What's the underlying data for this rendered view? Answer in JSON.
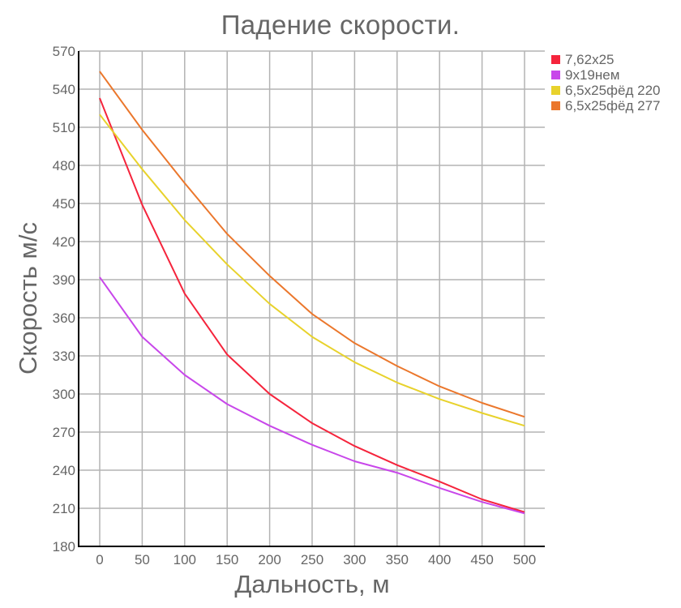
{
  "title": "Падение скорости.",
  "chart_data": {
    "type": "line",
    "title": "Падение скорости.",
    "xlabel": "Дальность, м",
    "ylabel": "Скорость м/с",
    "x": [
      0,
      50,
      100,
      150,
      200,
      250,
      300,
      350,
      400,
      450,
      500
    ],
    "xlim": [
      0,
      500
    ],
    "ylim": [
      180,
      570
    ],
    "yticks": [
      180,
      210,
      240,
      270,
      300,
      330,
      360,
      390,
      420,
      450,
      480,
      510,
      540,
      570
    ],
    "xticks": [
      0,
      50,
      100,
      150,
      200,
      250,
      300,
      350,
      400,
      450,
      500
    ],
    "grid": true,
    "legend_position": "right",
    "series": [
      {
        "name": "7,62x25",
        "color": "#f5243c",
        "values": [
          533,
          449,
          379,
          331,
          300,
          277,
          259,
          244,
          231,
          217,
          207
        ]
      },
      {
        "name": "9x19нем",
        "color": "#c847ea",
        "values": [
          392,
          345,
          315,
          292,
          275,
          260,
          247,
          238,
          226,
          215,
          206
        ]
      },
      {
        "name": "6,5x25фёд 220",
        "color": "#e8d22c",
        "values": [
          520,
          477,
          437,
          402,
          371,
          345,
          325,
          309,
          296,
          285,
          275
        ]
      },
      {
        "name": "6,5x25фёд 277",
        "color": "#eb772c",
        "values": [
          554,
          508,
          466,
          426,
          393,
          363,
          340,
          322,
          306,
          293,
          282
        ]
      }
    ]
  }
}
